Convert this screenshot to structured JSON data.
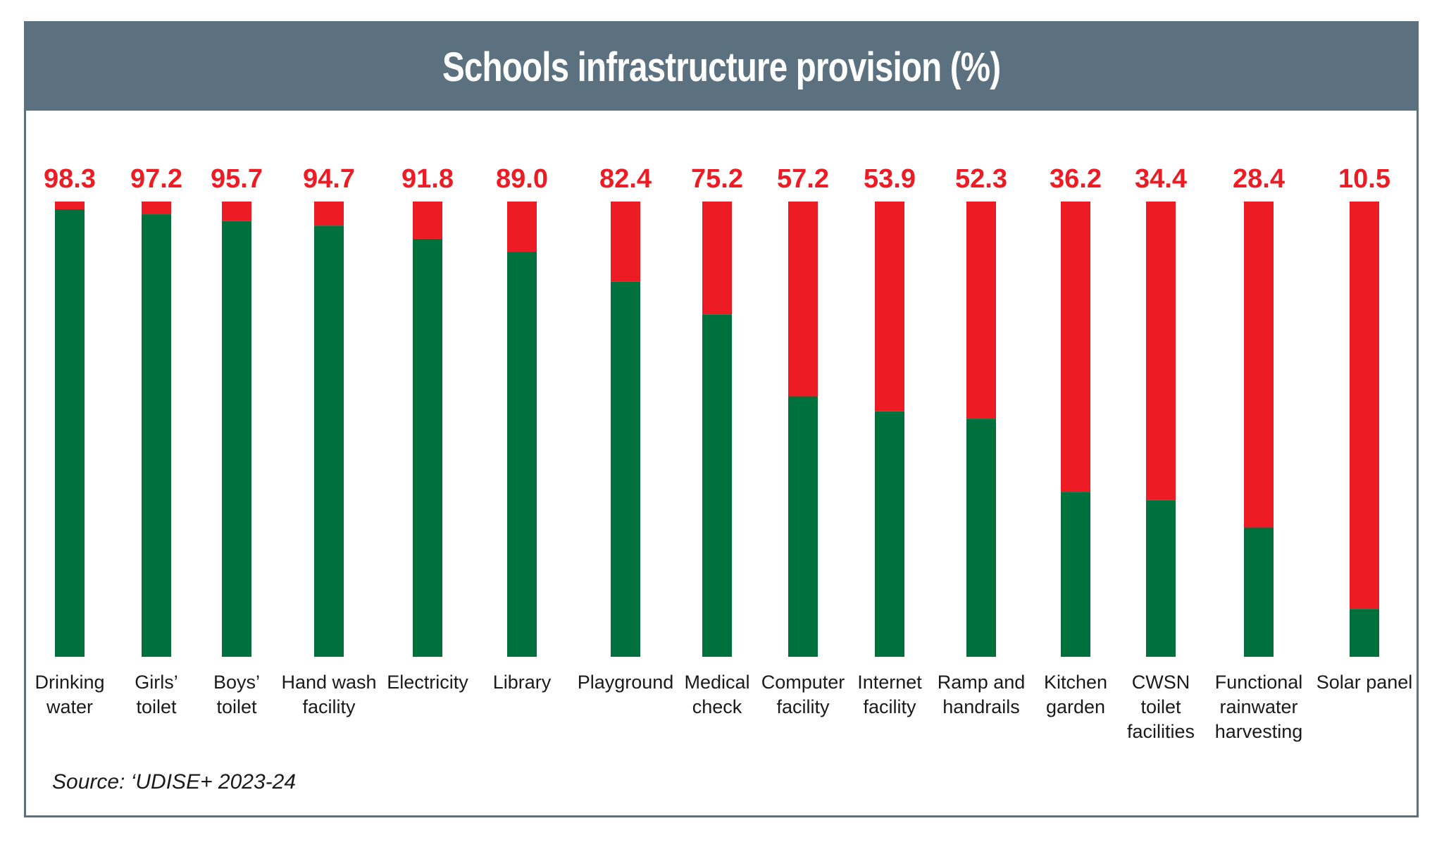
{
  "header": {
    "title": "Schools infrastructure provision (%)"
  },
  "footer": {
    "source": "Source: ‘UDISE+ 2023-24"
  },
  "colors": {
    "provided": "#00703c",
    "not_provided": "#ed1c24",
    "label": "#ed1c24",
    "band": "#5b7180"
  },
  "chart_data": {
    "type": "bar",
    "stacked": true,
    "title": "Schools infrastructure provision (%)",
    "ylim": [
      0,
      100
    ],
    "categories": [
      [
        "Drinking",
        "water"
      ],
      [
        "Girls’",
        "toilet"
      ],
      [
        "Boys’",
        "toilet"
      ],
      [
        "Hand wash",
        "facility"
      ],
      [
        "Electricity"
      ],
      [
        "Library"
      ],
      [
        "Playground"
      ],
      [
        "Medical",
        "check"
      ],
      [
        "Computer",
        "facility"
      ],
      [
        "Internet",
        "facility"
      ],
      [
        "Ramp and",
        "handrails"
      ],
      [
        "Kitchen",
        "garden"
      ],
      [
        "CWSN",
        "toilet",
        "facilities"
      ],
      [
        "Functional",
        "rainwater",
        "harvesting"
      ],
      [
        "Solar panel"
      ]
    ],
    "values": [
      98.3,
      97.2,
      95.7,
      94.7,
      91.8,
      89.0,
      82.4,
      75.2,
      57.2,
      53.9,
      52.3,
      36.2,
      34.4,
      28.4,
      10.5
    ],
    "value_labels": [
      "98.3",
      "97.2",
      "95.7",
      "94.7",
      "91.8",
      "89.0",
      "82.4",
      "75.2",
      "57.2",
      "53.9",
      "52.3",
      "36.2",
      "34.4",
      "28.4",
      "10.5"
    ],
    "grid": false,
    "legend": "none"
  }
}
